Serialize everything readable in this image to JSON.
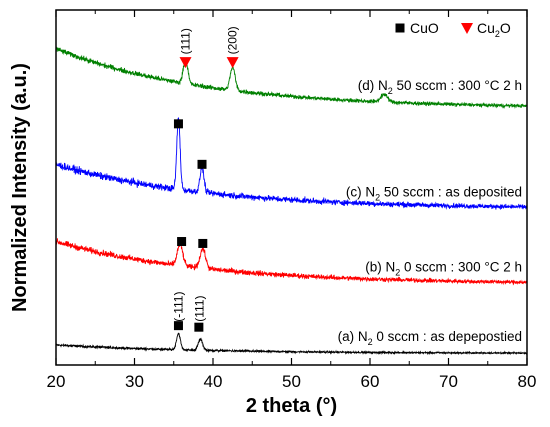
{
  "chart_data": {
    "type": "line",
    "xlabel": "2 theta (°)",
    "ylabel": "Normalized Intensity (a.u.)",
    "xlim": [
      20,
      80
    ],
    "xticks": [
      20,
      30,
      40,
      50,
      60,
      70,
      80
    ],
    "yticks_shown": false,
    "grid": false,
    "legend_position": "top-right",
    "legend": [
      {
        "name": "CuO",
        "marker": "square",
        "color": "#000000"
      },
      {
        "name": "Cu2O",
        "marker": "triangle-down",
        "color": "#ff0000"
      }
    ],
    "series": [
      {
        "label": "(a) N2 0 sccm : as depepostied",
        "color": "#000000",
        "offset": 0.0,
        "baseline_start": 0.22,
        "baseline_end": 0.0,
        "noise": 0.045,
        "peaks": [
          {
            "x": 35.6,
            "height": 0.42,
            "width": 0.35
          },
          {
            "x": 38.4,
            "height": 0.28,
            "width": 0.4
          }
        ]
      },
      {
        "label": "(b) N2 0 sccm : 300 °C 2 h",
        "color": "#ff0000",
        "offset": 1.8,
        "baseline_start": 1.1,
        "baseline_end": 0.0,
        "noise": 0.12,
        "peaks": [
          {
            "x": 35.8,
            "height": 0.55,
            "width": 0.5
          },
          {
            "x": 38.7,
            "height": 0.5,
            "width": 0.5
          }
        ]
      },
      {
        "label": "(c) N2 50 sccm : as deposited",
        "color": "#0000ff",
        "offset": 3.75,
        "baseline_start": 1.15,
        "baseline_end": 0.0,
        "noise": 0.14,
        "peaks": [
          {
            "x": 35.6,
            "height": 1.85,
            "width": 0.3
          },
          {
            "x": 38.6,
            "height": 0.65,
            "width": 0.35
          }
        ]
      },
      {
        "label": "(d) N2 50 sccm : 300 °C 2 h",
        "color": "#008000",
        "offset": 6.35,
        "baseline_start": 1.55,
        "baseline_end": 0.0,
        "noise": 0.1,
        "peaks": [
          {
            "x": 36.5,
            "height": 0.65,
            "width": 0.4
          },
          {
            "x": 42.5,
            "height": 0.6,
            "width": 0.45
          },
          {
            "x": 61.8,
            "height": 0.2,
            "width": 0.6
          }
        ]
      }
    ],
    "markers": [
      {
        "type": "CuO",
        "x": 35.6,
        "y": 0.72
      },
      {
        "type": "CuO",
        "x": 38.2,
        "y": 0.68
      },
      {
        "type": "CuO",
        "x": 36.0,
        "y": 2.9
      },
      {
        "type": "CuO",
        "x": 38.7,
        "y": 2.85
      },
      {
        "type": "CuO",
        "x": 35.6,
        "y": 5.95
      },
      {
        "type": "CuO",
        "x": 38.6,
        "y": 4.9
      },
      {
        "type": "Cu2O",
        "x": 36.5,
        "y": 7.55
      },
      {
        "type": "Cu2O",
        "x": 42.5,
        "y": 7.55
      }
    ],
    "peak_labels": [
      {
        "text": "(-111)",
        "x": 35.6,
        "y": 0.82
      },
      {
        "text": "(111)",
        "x": 38.3,
        "y": 0.82
      },
      {
        "text": "(111)",
        "x": 36.5,
        "y": 7.75
      },
      {
        "text": "(200)",
        "x": 42.5,
        "y": 7.75
      }
    ]
  }
}
